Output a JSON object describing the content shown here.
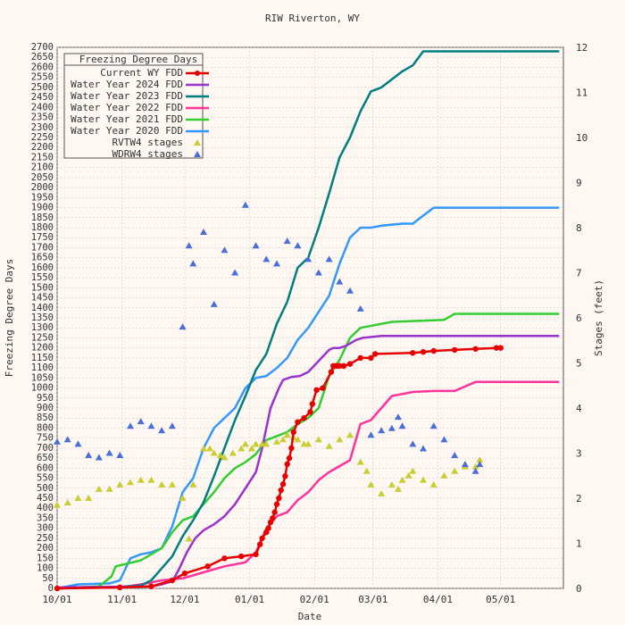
{
  "chart_data": {
    "type": "line",
    "title": "RIW Riverton, WY",
    "xlabel": "Date",
    "ylabel": "Freezing Degree Days",
    "y2label": "Stages (feet)",
    "xlim": [
      "10/01",
      "05/31"
    ],
    "ylim": [
      0,
      2700
    ],
    "y2lim": [
      0,
      12
    ],
    "x_ticks": [
      "10/01",
      "11/01",
      "12/01",
      "01/01",
      "02/01",
      "03/01",
      "04/01",
      "05/01"
    ],
    "y_ticks_step": 50,
    "y2_ticks": [
      0,
      1,
      2,
      3,
      4,
      5,
      6,
      7,
      8,
      9,
      10,
      11,
      12
    ],
    "legend": {
      "title": "Freezing Degree Days",
      "position": "top-left",
      "entries": [
        "Current WY FDD",
        "Water Year 2024 FDD",
        "Water Year 2023 FDD",
        "Water Year 2022 FDD",
        "Water Year 2021 FDD",
        "Water Year 2020 FDD",
        "RVTW4 stages",
        "WDRW4 stages"
      ]
    },
    "grid": true,
    "series": [
      {
        "name": "Current WY FDD",
        "color": "#e60000",
        "axis": "left",
        "style": "line-markers",
        "x": [
          0,
          30,
          45,
          55,
          61,
          72,
          80,
          88,
          95,
          97,
          98,
          100,
          101,
          102,
          103,
          104,
          105,
          106,
          107,
          108,
          109,
          110,
          111,
          112,
          113,
          115,
          118,
          121,
          122,
          124,
          127,
          131,
          132,
          133,
          134,
          135,
          137,
          140,
          145,
          150,
          152,
          170,
          175,
          180,
          190,
          200,
          210,
          212
        ],
        "y": [
          0,
          5,
          10,
          40,
          75,
          110,
          150,
          160,
          170,
          220,
          250,
          280,
          300,
          330,
          350,
          380,
          420,
          450,
          490,
          520,
          560,
          620,
          650,
          700,
          780,
          830,
          850,
          880,
          920,
          990,
          1000,
          1080,
          1110,
          1110,
          1110,
          1110,
          1110,
          1120,
          1150,
          1150,
          1170,
          1175,
          1180,
          1185,
          1190,
          1195,
          1200,
          1200
        ]
      },
      {
        "name": "Water Year 2024 FDD",
        "color": "#9933cc",
        "axis": "left",
        "style": "line",
        "x": [
          0,
          45,
          50,
          55,
          58,
          62,
          66,
          70,
          75,
          80,
          85,
          90,
          95,
          98,
          100,
          102,
          106,
          108,
          112,
          116,
          120,
          130,
          132,
          135,
          138,
          143,
          146,
          155,
          160,
          170,
          175,
          190,
          240
        ],
        "y": [
          5,
          10,
          20,
          35,
          90,
          180,
          250,
          290,
          320,
          360,
          420,
          500,
          580,
          700,
          800,
          900,
          1000,
          1040,
          1055,
          1060,
          1080,
          1190,
          1200,
          1200,
          1210,
          1240,
          1250,
          1260,
          1260,
          1260,
          1260,
          1260,
          1260
        ]
      },
      {
        "name": "Water Year 2023 FDD",
        "color": "#007f7f",
        "axis": "left",
        "style": "line",
        "x": [
          0,
          20,
          30,
          40,
          45,
          50,
          55,
          60,
          65,
          70,
          75,
          80,
          85,
          90,
          95,
          100,
          105,
          110,
          115,
          120,
          125,
          130,
          135,
          140,
          145,
          150,
          155,
          160,
          165,
          170,
          175,
          178,
          180,
          185,
          190,
          240
        ],
        "y": [
          0,
          5,
          8,
          15,
          40,
          100,
          160,
          260,
          340,
          430,
          560,
          700,
          840,
          960,
          1090,
          1170,
          1320,
          1430,
          1600,
          1650,
          1800,
          1970,
          2150,
          2250,
          2380,
          2480,
          2500,
          2540,
          2580,
          2610,
          2680,
          2680,
          2680,
          2680,
          2680,
          2680
        ]
      },
      {
        "name": "Water Year 2022 FDD",
        "color": "#ff3399",
        "axis": "left",
        "style": "line",
        "x": [
          0,
          30,
          40,
          50,
          60,
          70,
          80,
          90,
          95,
          100,
          105,
          110,
          115,
          120,
          125,
          130,
          140,
          145,
          150,
          160,
          165,
          170,
          180,
          190,
          200,
          240
        ],
        "y": [
          0,
          5,
          20,
          40,
          50,
          80,
          110,
          130,
          180,
          300,
          360,
          380,
          440,
          480,
          540,
          580,
          640,
          820,
          840,
          960,
          970,
          980,
          985,
          985,
          1030,
          1030
        ]
      },
      {
        "name": "Water Year 2021 FDD",
        "color": "#33cc33",
        "axis": "left",
        "style": "line",
        "x": [
          0,
          20,
          26,
          28,
          40,
          50,
          55,
          60,
          65,
          70,
          75,
          80,
          85,
          90,
          95,
          100,
          105,
          110,
          115,
          120,
          125,
          130,
          135,
          140,
          145,
          160,
          185,
          190,
          200,
          240
        ],
        "y": [
          0,
          10,
          60,
          110,
          140,
          200,
          280,
          340,
          360,
          420,
          480,
          550,
          600,
          630,
          670,
          740,
          760,
          780,
          820,
          850,
          900,
          1060,
          1140,
          1250,
          1300,
          1330,
          1340,
          1370,
          1370,
          1370
        ]
      },
      {
        "name": "Water Year 2020 FDD",
        "color": "#3399ff",
        "axis": "left",
        "style": "line",
        "x": [
          0,
          10,
          25,
          30,
          35,
          40,
          45,
          50,
          55,
          60,
          65,
          70,
          75,
          80,
          85,
          90,
          95,
          100,
          105,
          110,
          115,
          120,
          125,
          130,
          135,
          140,
          145,
          150,
          155,
          165,
          170,
          175,
          180,
          190,
          240
        ],
        "y": [
          0,
          20,
          25,
          40,
          150,
          170,
          180,
          200,
          310,
          480,
          550,
          700,
          800,
          850,
          900,
          1000,
          1050,
          1060,
          1100,
          1150,
          1240,
          1300,
          1380,
          1460,
          1620,
          1750,
          1800,
          1800,
          1810,
          1820,
          1820,
          1860,
          1900,
          1900,
          1900
        ]
      },
      {
        "name": "RVTW4 stages",
        "color": "#cccc33",
        "axis": "right",
        "style": "markers-triangle",
        "x": [
          0,
          5,
          10,
          15,
          20,
          25,
          30,
          35,
          40,
          45,
          50,
          55,
          60,
          63,
          65,
          70,
          73,
          75,
          78,
          80,
          84,
          88,
          90,
          93,
          95,
          98,
          100,
          105,
          108,
          110,
          113,
          115,
          118,
          120,
          125,
          130,
          135,
          140,
          145,
          148,
          150,
          155,
          160,
          163,
          165,
          168,
          170,
          175,
          180,
          185,
          190,
          195,
          200,
          202
        ],
        "y": [
          1.85,
          1.9,
          2.0,
          2.0,
          2.2,
          2.2,
          2.3,
          2.35,
          2.4,
          2.4,
          2.3,
          2.3,
          2.0,
          1.1,
          2.3,
          3.1,
          3.1,
          3.0,
          2.95,
          2.9,
          3.0,
          3.1,
          3.2,
          3.1,
          3.2,
          3.2,
          3.2,
          3.25,
          3.3,
          3.4,
          3.35,
          3.3,
          3.2,
          3.2,
          3.3,
          3.15,
          3.3,
          3.4,
          2.8,
          2.6,
          2.3,
          2.1,
          2.3,
          2.2,
          2.4,
          2.5,
          2.6,
          2.4,
          2.3,
          2.5,
          2.6,
          2.7,
          2.7,
          2.85
        ]
      },
      {
        "name": "WDRW4 stages",
        "color": "#4a6fd6",
        "axis": "right",
        "style": "markers-triangle",
        "x": [
          0,
          5,
          10,
          15,
          20,
          25,
          30,
          35,
          40,
          45,
          50,
          55,
          60,
          63,
          65,
          70,
          75,
          80,
          85,
          90,
          95,
          100,
          105,
          110,
          115,
          120,
          125,
          130,
          135,
          140,
          145,
          150,
          155,
          160,
          163,
          165,
          170,
          175,
          180,
          185,
          190,
          195,
          200,
          202
        ],
        "y": [
          3.25,
          3.3,
          3.2,
          2.95,
          2.9,
          3.0,
          2.95,
          3.6,
          3.7,
          3.6,
          3.5,
          3.6,
          5.8,
          7.6,
          7.2,
          7.9,
          6.3,
          7.5,
          7.0,
          8.5,
          7.6,
          7.3,
          7.2,
          7.7,
          7.6,
          7.3,
          7.0,
          7.3,
          6.8,
          6.6,
          6.2,
          3.4,
          3.5,
          3.55,
          3.8,
          3.6,
          3.2,
          3.1,
          3.6,
          3.3,
          2.95,
          2.75,
          2.6,
          2.75
        ]
      }
    ]
  }
}
